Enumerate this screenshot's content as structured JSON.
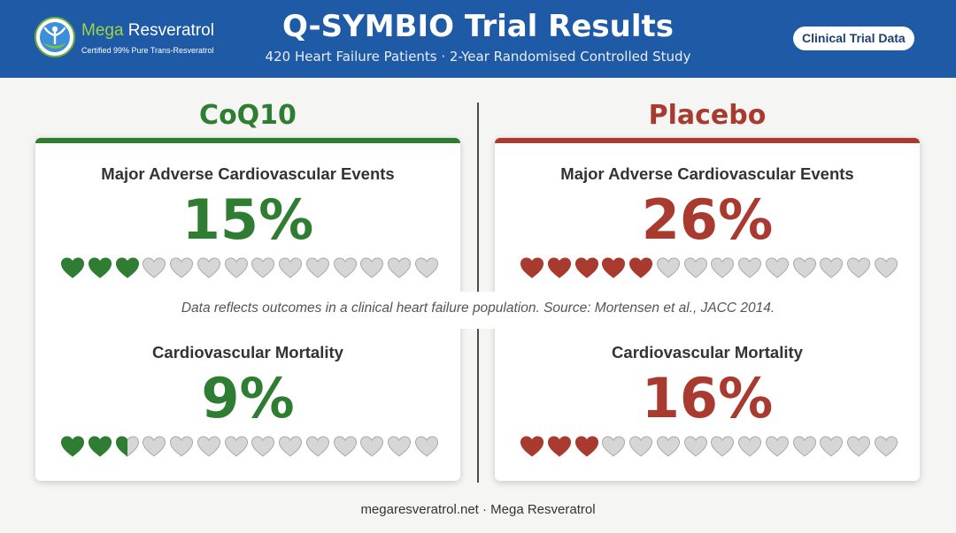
{
  "header": {
    "title": "Q-SYMBIO Trial Results",
    "subtitle": "420 Heart Failure Patients · 2-Year Randomised Controlled Study",
    "badge": "Clinical Trial Data",
    "logo": {
      "name_part1": "Mega",
      "name_part2": " Resveratrol",
      "tagline": "Certified 99% Pure Trans-Resveratrol"
    }
  },
  "colors": {
    "header_bg": "#1e5aa6",
    "coq10": "#2e7d32",
    "placebo": "#a83a2f",
    "heart_empty": "#d6d6d6"
  },
  "chart_data": {
    "type": "pictograph",
    "unit": "%",
    "icons_total": 14,
    "groups": [
      {
        "name": "CoQ10",
        "metrics": [
          {
            "label": "Major Adverse Cardiovascular Events",
            "value": 15,
            "display": "15%",
            "filled_icons": 3
          },
          {
            "label": "Cardiovascular Mortality",
            "value": 9,
            "display": "9%",
            "filled_icons": 2.5
          }
        ]
      },
      {
        "name": "Placebo",
        "metrics": [
          {
            "label": "Major Adverse Cardiovascular Events",
            "value": 26,
            "display": "26%",
            "filled_icons": 5
          },
          {
            "label": "Cardiovascular Mortality",
            "value": 16,
            "display": "16%",
            "filled_icons": 3
          }
        ]
      }
    ]
  },
  "note": "Data reflects outcomes in a clinical heart failure population. Source: Mortensen et al., JACC 2014.",
  "footer": "megaresveratrol.net · Mega Resveratrol"
}
